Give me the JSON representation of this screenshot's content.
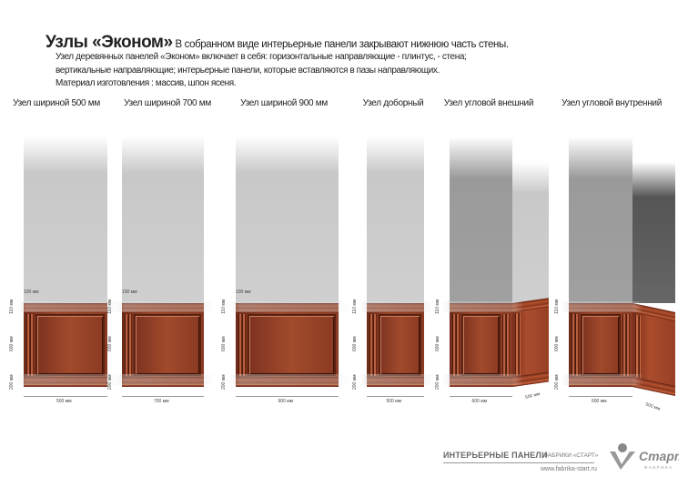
{
  "header": {
    "title": "Узлы «Эконом»",
    "subtitle": "В собранном виде интерьерные панели закрывают нижнюю часть стены.",
    "lines": [
      "Узел деревянных панелей «Эконом» включает в себя: горизонтальные направляющие - плинтус, - стена;",
      "вертикальные направляющие; интерьерные панели, которые вставляются в пазы направляющих.",
      "Материал изготовления : массив, шпон ясеня."
    ]
  },
  "units": [
    {
      "label": "Узел шириной 500 мм",
      "top_dim": "100 мм",
      "h1": "110 мм",
      "h2": "600 мм",
      "h3": "200 мм",
      "width": "500 мм"
    },
    {
      "label": "Узел шириной 700 мм",
      "top_dim": "100 мм",
      "h1": "110 мм",
      "h2": "600 мм",
      "h3": "200 мм",
      "width": "700 мм"
    },
    {
      "label": "Узел шириной 900 мм",
      "top_dim": "100 мм",
      "h1": "110 мм",
      "h2": "600 мм",
      "h3": "200 мм",
      "width": "900 мм"
    },
    {
      "label": "Узел доборный",
      "h1": "110 мм",
      "h2": "600 мм",
      "h3": "200 мм",
      "width": "500 мм"
    },
    {
      "label": "Узел угловой внешний",
      "h1": "110 мм",
      "h2": "600 мм",
      "h3": "200 мм",
      "width": "600 мм",
      "side": "500 мм"
    },
    {
      "label": "Узел угловой внутренний",
      "h1": "110 мм",
      "h2": "600 мм",
      "h3": "200 мм",
      "width": "600 мм",
      "side": "500 мм"
    }
  ],
  "footer": {
    "product": "ИНТЕРЬЕРНЫЕ ПАНЕЛИ",
    "factory": "ФАБРИКИ «СТАРТ»",
    "url": "www.fabrika-start.ru",
    "logo_text": "Старт",
    "logo_sub": "ФАБРИКА"
  }
}
